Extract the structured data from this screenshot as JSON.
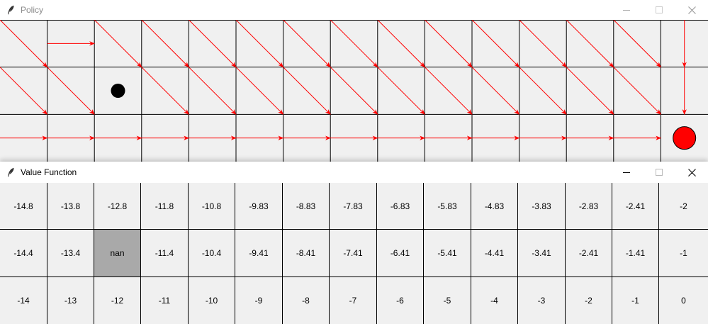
{
  "policy_window": {
    "title": "Policy",
    "icon": "feather-icon",
    "controls": [
      "minimize-icon",
      "maximize-icon",
      "close-icon"
    ]
  },
  "value_window": {
    "title": "Value Function",
    "icon": "feather-icon",
    "controls": [
      "minimize-icon",
      "maximize-icon",
      "close-icon"
    ]
  },
  "grid": {
    "columns": 15,
    "rows": 3,
    "obstacle": {
      "row": 1,
      "col": 2
    },
    "agent": {
      "row": 1,
      "col": 2
    },
    "goal": {
      "row": 2,
      "col": 14
    }
  },
  "policy": [
    [
      "down-right",
      "right",
      "down-right",
      "down-right",
      "down-right",
      "down-right",
      "down-right",
      "down-right",
      "down-right",
      "down-right",
      "down-right",
      "down-right",
      "down-right",
      "down-right",
      "down"
    ],
    [
      "down-right",
      "down-right",
      "none",
      "down-right",
      "down-right",
      "down-right",
      "down-right",
      "down-right",
      "down-right",
      "down-right",
      "down-right",
      "down-right",
      "down-right",
      "down-right",
      "down"
    ],
    [
      "right",
      "right",
      "right",
      "right",
      "right",
      "right",
      "right",
      "right",
      "right",
      "right",
      "right",
      "right",
      "right",
      "right",
      "none"
    ]
  ],
  "values": [
    [
      "-14.8",
      "-13.8",
      "-12.8",
      "-11.8",
      "-10.8",
      "-9.83",
      "-8.83",
      "-7.83",
      "-6.83",
      "-5.83",
      "-4.83",
      "-3.83",
      "-2.83",
      "-2.41",
      "-2"
    ],
    [
      "-14.4",
      "-13.4",
      "nan",
      "-11.4",
      "-10.4",
      "-9.41",
      "-8.41",
      "-7.41",
      "-6.41",
      "-5.41",
      "-4.41",
      "-3.41",
      "-2.41",
      "-1.41",
      "-1"
    ],
    [
      "-14",
      "-13",
      "-12",
      "-11",
      "-10",
      "-9",
      "-8",
      "-7",
      "-6",
      "-5",
      "-4",
      "-3",
      "-2",
      "-1",
      "0"
    ]
  ],
  "colors": {
    "arrow": "#ff0000",
    "goal": "#ff0000",
    "agent": "#000000",
    "obstacle": "#a9a9a9",
    "grid_line": "#000000",
    "background": "#f0f0f0",
    "titlebar": "#ffffff"
  }
}
